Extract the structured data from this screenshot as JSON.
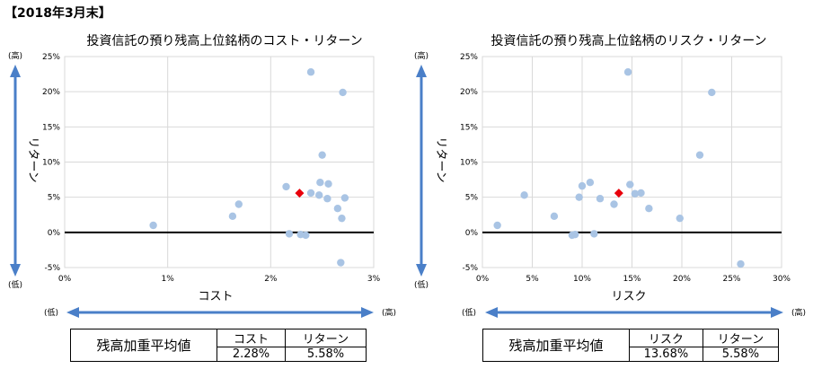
{
  "header": "【2018年3月末】",
  "charts": [
    {
      "id": "cost",
      "summary": {
        "label": "残高加重平均値",
        "headers": [
          "コスト",
          "リターン"
        ],
        "values": [
          "2.28%",
          "5.58%"
        ]
      },
      "axis_arrow_labels": {
        "y_high": "(高)",
        "y_low": "(低)",
        "x_low": "(低)",
        "x_high": "(高)"
      }
    },
    {
      "id": "risk",
      "summary": {
        "label": "残高加重平均値",
        "headers": [
          "リスク",
          "リターン"
        ],
        "values": [
          "13.68%",
          "5.58%"
        ]
      },
      "axis_arrow_labels": {
        "y_high": "(高)",
        "y_low": "(低)",
        "x_low": "(低)",
        "x_high": "(高)"
      }
    }
  ],
  "colors": {
    "point": "#a9c4e4",
    "average": "#e8000b",
    "arrow": "#4a7fc8",
    "grid": "#d9d9d9"
  },
  "chart_data": [
    {
      "type": "scatter",
      "title": "投資信託の預り残高上位銘柄のコスト・リターン",
      "xlabel": "コスト",
      "ylabel": "リターン",
      "xlim": [
        0,
        3
      ],
      "ylim": [
        -5,
        25
      ],
      "x_ticks": [
        "0%",
        "1%",
        "2%",
        "3%"
      ],
      "y_ticks": [
        "25%",
        "20%",
        "15%",
        "10%",
        "5%",
        "0%",
        "-5%"
      ],
      "points": [
        {
          "x": 0.86,
          "y": 1.0
        },
        {
          "x": 1.63,
          "y": 2.3
        },
        {
          "x": 1.69,
          "y": 4.0
        },
        {
          "x": 2.15,
          "y": 6.5
        },
        {
          "x": 2.18,
          "y": -0.2
        },
        {
          "x": 2.29,
          "y": -0.3
        },
        {
          "x": 2.34,
          "y": -0.4
        },
        {
          "x": 2.39,
          "y": 5.6
        },
        {
          "x": 2.39,
          "y": 22.8
        },
        {
          "x": 2.47,
          "y": 5.3
        },
        {
          "x": 2.48,
          "y": 7.1
        },
        {
          "x": 2.5,
          "y": 11.0
        },
        {
          "x": 2.55,
          "y": 4.8
        },
        {
          "x": 2.56,
          "y": 6.9
        },
        {
          "x": 2.65,
          "y": 3.4
        },
        {
          "x": 2.68,
          "y": -4.3
        },
        {
          "x": 2.69,
          "y": 2.0
        },
        {
          "x": 2.7,
          "y": 19.9
        },
        {
          "x": 2.72,
          "y": 4.9
        }
      ],
      "average": {
        "x": 2.28,
        "y": 5.58
      }
    },
    {
      "type": "scatter",
      "title": "投資信託の預り残高上位銘柄のリスク・リターン",
      "xlabel": "リスク",
      "ylabel": "リターン",
      "xlim": [
        0,
        30
      ],
      "ylim": [
        -5,
        25
      ],
      "x_ticks": [
        "0%",
        "5%",
        "10%",
        "15%",
        "20%",
        "25%",
        "30%"
      ],
      "y_ticks": [
        "25%",
        "20%",
        "15%",
        "10%",
        "5%",
        "0%",
        "-5%"
      ],
      "points": [
        {
          "x": 1.5,
          "y": 1.0
        },
        {
          "x": 4.2,
          "y": 5.3
        },
        {
          "x": 7.2,
          "y": 2.3
        },
        {
          "x": 9.0,
          "y": -0.4
        },
        {
          "x": 9.3,
          "y": -0.3
        },
        {
          "x": 9.7,
          "y": 5.0
        },
        {
          "x": 10.0,
          "y": 6.6
        },
        {
          "x": 10.8,
          "y": 7.1
        },
        {
          "x": 11.2,
          "y": -0.2
        },
        {
          "x": 11.8,
          "y": 4.8
        },
        {
          "x": 13.2,
          "y": 4.0
        },
        {
          "x": 14.6,
          "y": 22.8
        },
        {
          "x": 14.8,
          "y": 6.8
        },
        {
          "x": 15.3,
          "y": 5.5
        },
        {
          "x": 15.9,
          "y": 5.6
        },
        {
          "x": 16.7,
          "y": 3.4
        },
        {
          "x": 19.8,
          "y": 2.0
        },
        {
          "x": 21.8,
          "y": 11.0
        },
        {
          "x": 23.0,
          "y": 19.9
        },
        {
          "x": 25.9,
          "y": -4.5
        }
      ],
      "average": {
        "x": 13.68,
        "y": 5.58
      }
    }
  ]
}
